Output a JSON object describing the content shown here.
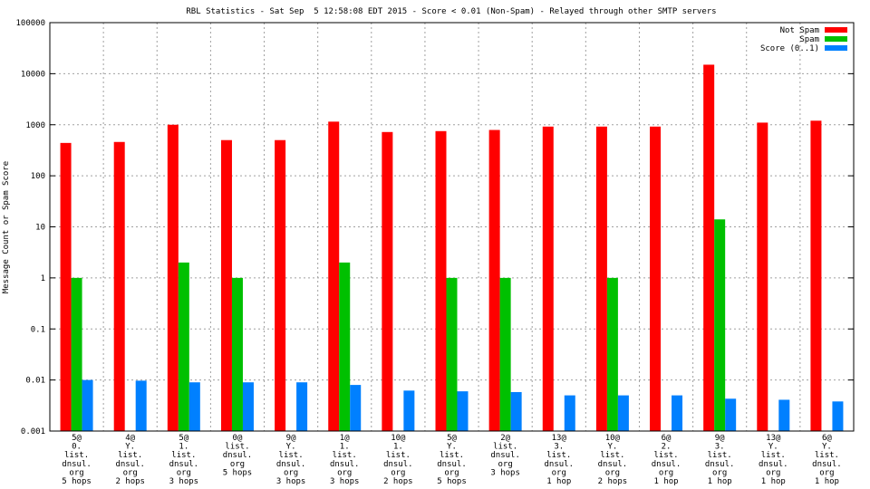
{
  "chart_data": {
    "type": "bar",
    "title": "RBL Statistics - Sat Sep  5 12:58:08 EDT 2015 - Score < 0.01 (Non-Spam) - Relayed through other SMTP servers",
    "xlabel": "",
    "ylabel": "Message Count or Spam Score",
    "yscale": "log",
    "ylim": [
      0.001,
      100000
    ],
    "yticks": [
      "0.001",
      "0.01",
      "0.1",
      "1",
      "10",
      "100",
      "1000",
      "10000",
      "100000"
    ],
    "grid": true,
    "legend_position": "top-right",
    "categories": [
      [
        "5@",
        "0.",
        "list.",
        "dnsul.",
        "org",
        "5 hops"
      ],
      [
        "4@",
        "Y.",
        "list.",
        "dnsul.",
        "org",
        "2 hops"
      ],
      [
        "5@",
        "1.",
        "list.",
        "dnsul.",
        "org",
        "3 hops"
      ],
      [
        "0@",
        "list.",
        "dnsul.",
        "org",
        "5 hops"
      ],
      [
        "9@",
        "Y.",
        "list.",
        "dnsul.",
        "org",
        "3 hops"
      ],
      [
        "1@",
        "1.",
        "list.",
        "dnsul.",
        "org",
        "3 hops"
      ],
      [
        "10@",
        "1.",
        "list.",
        "dnsul.",
        "org",
        "2 hops"
      ],
      [
        "5@",
        "Y.",
        "list.",
        "dnsul.",
        "org",
        "5 hops"
      ],
      [
        "2@",
        "list.",
        "dnsul.",
        "org",
        "3 hops"
      ],
      [
        "13@",
        "3.",
        "list.",
        "dnsul.",
        "org",
        "1 hop"
      ],
      [
        "10@",
        "Y.",
        "list.",
        "dnsul.",
        "org",
        "2 hops"
      ],
      [
        "6@",
        "2.",
        "list.",
        "dnsul.",
        "org",
        "1 hop"
      ],
      [
        "9@",
        "3.",
        "list.",
        "dnsul.",
        "org",
        "1 hop"
      ],
      [
        "13@",
        "Y.",
        "list.",
        "dnsul.",
        "org",
        "1 hop"
      ],
      [
        "6@",
        "Y.",
        "list.",
        "dnsul.",
        "org",
        "1 hop"
      ]
    ],
    "series": [
      {
        "name": "Not Spam",
        "color": "#ff0000",
        "values": [
          440,
          460,
          1000,
          500,
          500,
          1150,
          720,
          750,
          790,
          920,
          920,
          920,
          15000,
          1100,
          1200
        ]
      },
      {
        "name": "Spam",
        "color": "#00c000",
        "values": [
          1,
          null,
          2,
          1,
          null,
          2,
          null,
          1,
          1,
          null,
          1,
          null,
          14,
          null,
          null
        ]
      },
      {
        "name": "Score (0..1)",
        "color": "#0080ff",
        "values": [
          0.01,
          0.0097,
          0.009,
          0.009,
          0.009,
          0.008,
          0.0062,
          0.006,
          0.0058,
          0.005,
          0.005,
          0.005,
          0.0043,
          0.0041,
          0.0038
        ]
      }
    ]
  }
}
